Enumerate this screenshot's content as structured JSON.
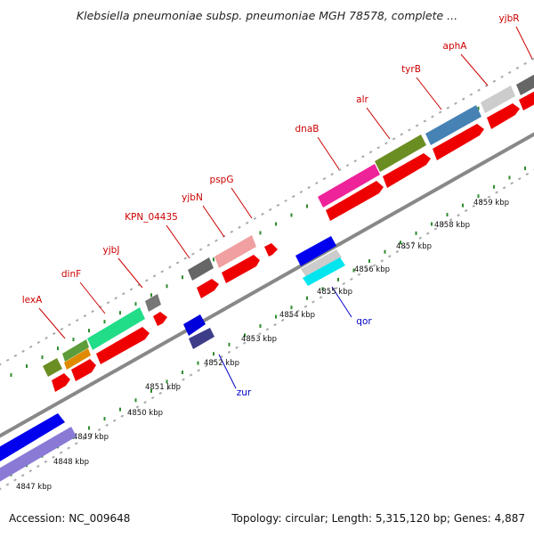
{
  "title": "Klebsiella pneumoniae subsp. pneumoniae MGH 78578, complete ...",
  "accession_text": "Accession: NC_009648",
  "summary_text": "Topology: circular; Length: 5,315,120 bp; Genes: 4,887",
  "colors": {
    "label_red": "#cc0000",
    "label_blue": "#0000cc",
    "backbone": "#888888",
    "tick": "#2e8b2e"
  },
  "top_genes": [
    {
      "label": "lexA"
    },
    {
      "label": "dinF"
    },
    {
      "label": "yjbJ"
    },
    {
      "label": "KPN_04435"
    },
    {
      "label": "yjbN"
    },
    {
      "label": "pspG"
    },
    {
      "label": "dnaB"
    },
    {
      "label": "alr"
    },
    {
      "label": "tyrB"
    },
    {
      "label": "aphA"
    },
    {
      "label": "yjbR"
    }
  ],
  "bottom_genes": [
    {
      "label": "zur"
    },
    {
      "label": "qor"
    }
  ],
  "tick_labels": [
    "4847 kbp",
    "4848 kbp",
    "4849 kbp",
    "4850 kbp",
    "4851 kbp",
    "4852 kbp",
    "4853 kbp",
    "4854 kbp",
    "4855 kbp",
    "4856 kbp",
    "4857 kbp",
    "4858 kbp",
    "4859 kbp"
  ]
}
